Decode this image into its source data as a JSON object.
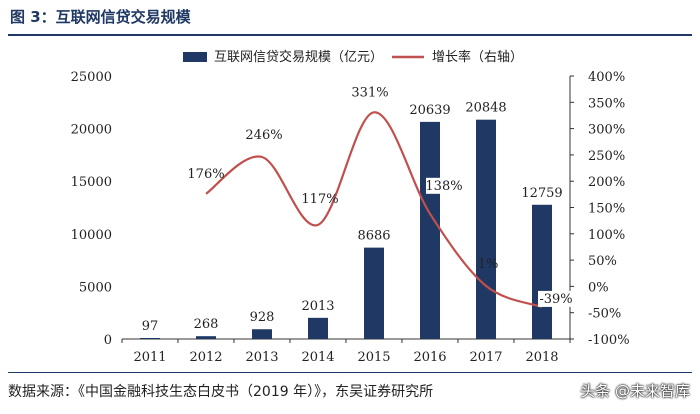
{
  "header": {
    "title": "图 3：互联网信贷交易规模"
  },
  "footer": {
    "source": "数据来源：《中国金融科技生态白皮书（2019 年）》，东吴证券研究所",
    "watermark": "头条 @未来智库"
  },
  "colors": {
    "bar": "#1f3864",
    "line": "#c0504d",
    "title": "#1f3864"
  },
  "chart_data": {
    "type": "bar",
    "categories": [
      "2011",
      "2012",
      "2013",
      "2014",
      "2015",
      "2016",
      "2017",
      "2018"
    ],
    "series": [
      {
        "name": "互联网信贷交易规模（亿元）",
        "type": "bar",
        "axis": "left",
        "values": [
          97,
          268,
          928,
          2013,
          8686,
          20639,
          20848,
          12759
        ],
        "labels": [
          "97",
          "268",
          "928",
          "2013",
          "8686",
          "20639",
          "20848",
          "12759"
        ]
      },
      {
        "name": "增长率（右轴）",
        "type": "line",
        "axis": "right",
        "smooth": true,
        "values": [
          null,
          176,
          246,
          117,
          331,
          138,
          1,
          -39
        ],
        "labels": [
          "",
          "176%",
          "246%",
          "117%",
          "331%",
          "138%",
          "1%",
          "-39%"
        ]
      }
    ],
    "y_left": {
      "min": 0,
      "max": 25000,
      "ticks": [
        "0",
        "5000",
        "10000",
        "15000",
        "20000",
        "25000"
      ]
    },
    "y_right": {
      "min": -100,
      "max": 400,
      "ticks": [
        "-100%",
        "-50%",
        "0%",
        "50%",
        "100%",
        "150%",
        "200%",
        "250%",
        "300%",
        "350%",
        "400%"
      ]
    },
    "legend": "top-center",
    "grid": false
  }
}
